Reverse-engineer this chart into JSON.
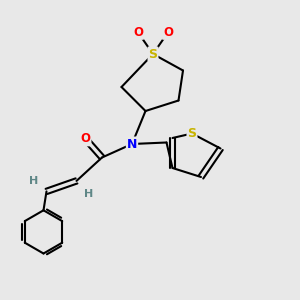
{
  "background_color": "#e8e8e8",
  "bond_color": "#000000",
  "atom_colors": {
    "S": "#c8b400",
    "O": "#ff0000",
    "N": "#0000ff",
    "C": "#000000",
    "H": "#5f8787"
  },
  "figsize": [
    3.0,
    3.0
  ],
  "dpi": 100
}
